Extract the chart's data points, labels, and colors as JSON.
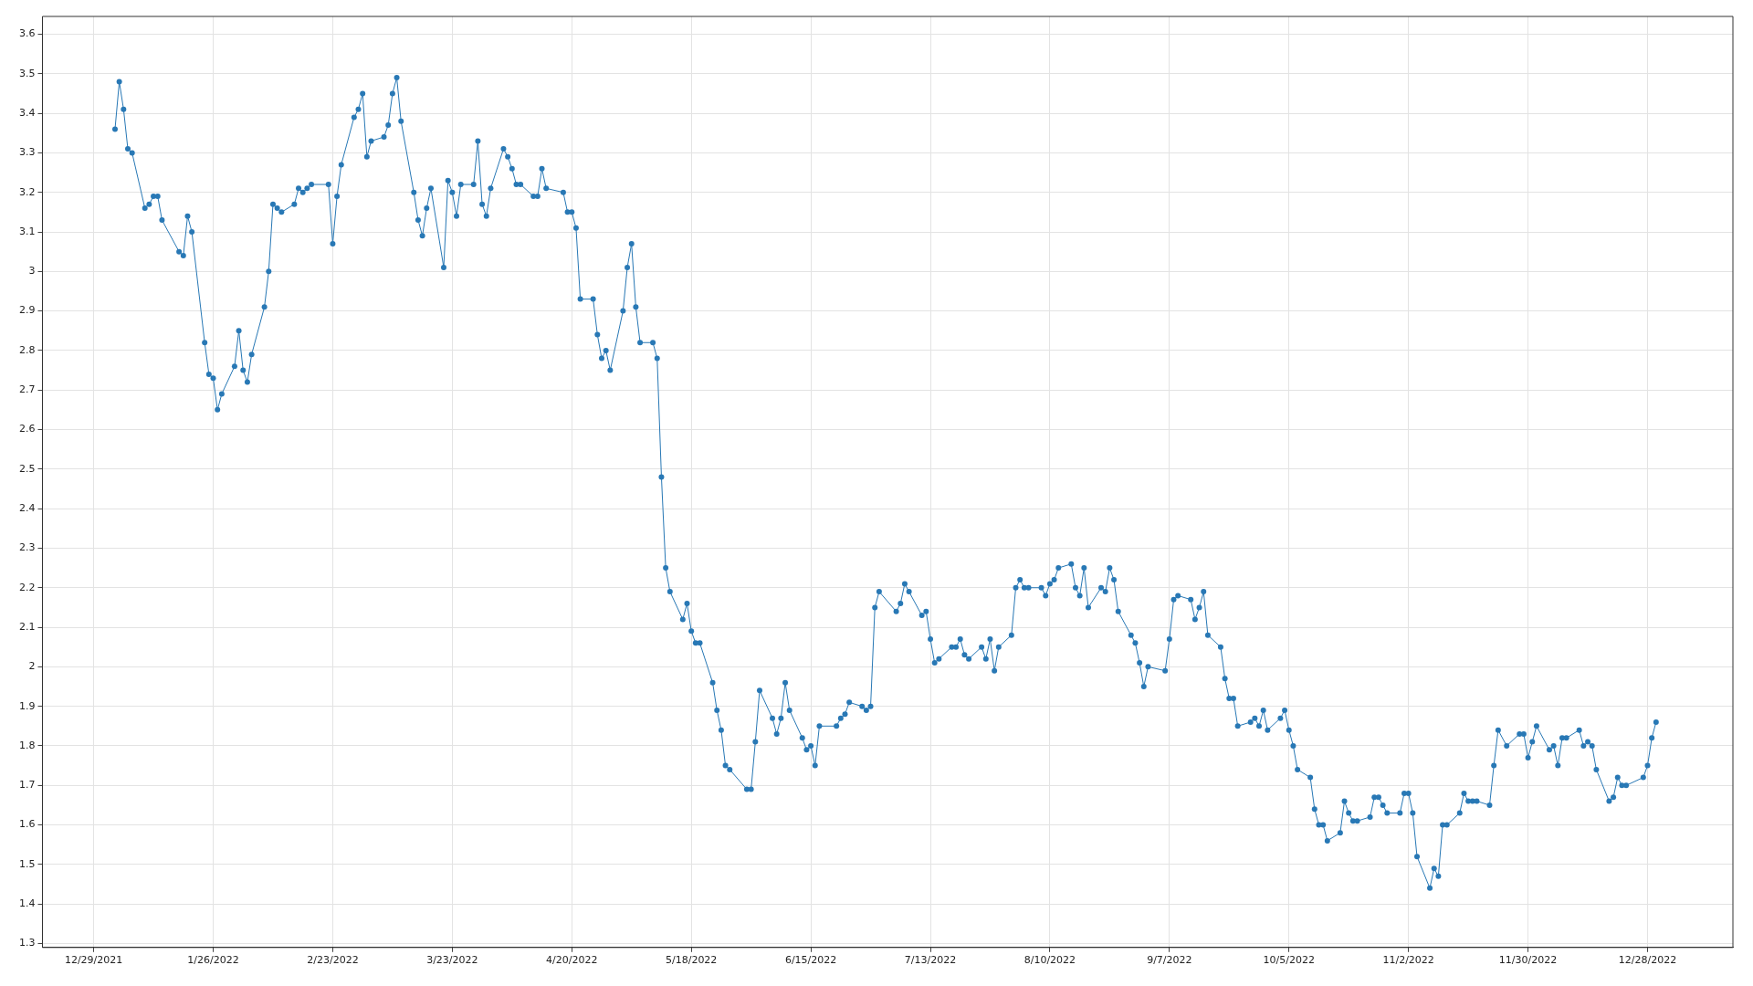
{
  "chart_data": {
    "type": "line",
    "marker": "circle",
    "line_style": "solid",
    "grid": true,
    "legend": false,
    "xlim": [
      "2021-12-17",
      "2023-01-17"
    ],
    "xticks": [
      {
        "value": "2021-12-29",
        "label": "12/29/2021"
      },
      {
        "value": "2022-01-26",
        "label": "1/26/2022"
      },
      {
        "value": "2022-02-23",
        "label": "2/23/2022"
      },
      {
        "value": "2022-03-23",
        "label": "3/23/2022"
      },
      {
        "value": "2022-04-20",
        "label": "4/20/2022"
      },
      {
        "value": "2022-05-18",
        "label": "5/18/2022"
      },
      {
        "value": "2022-06-15",
        "label": "6/15/2022"
      },
      {
        "value": "2022-07-13",
        "label": "7/13/2022"
      },
      {
        "value": "2022-08-10",
        "label": "8/10/2022"
      },
      {
        "value": "2022-09-07",
        "label": "9/7/2022"
      },
      {
        "value": "2022-10-05",
        "label": "10/5/2022"
      },
      {
        "value": "2022-11-02",
        "label": "11/2/2022"
      },
      {
        "value": "2022-11-30",
        "label": "11/30/2022"
      },
      {
        "value": "2022-12-28",
        "label": "12/28/2022"
      }
    ],
    "ylim": [
      1.29,
      3.645
    ],
    "yticks": [
      1.3,
      1.4,
      1.5,
      1.6,
      1.7,
      1.8,
      1.9,
      2,
      2.1,
      2.2,
      2.3,
      2.4,
      2.5,
      2.6,
      2.7,
      2.8,
      2.9,
      3,
      3.1,
      3.2,
      3.3,
      3.4,
      3.5,
      3.6
    ],
    "series": [
      {
        "color": "#2878b5",
        "x": [
          "2022-01-03",
          "2022-01-04",
          "2022-01-05",
          "2022-01-06",
          "2022-01-07",
          "2022-01-10",
          "2022-01-11",
          "2022-01-12",
          "2022-01-13",
          "2022-01-14",
          "2022-01-18",
          "2022-01-19",
          "2022-01-20",
          "2022-01-21",
          "2022-01-24",
          "2022-01-25",
          "2022-01-26",
          "2022-01-27",
          "2022-01-28",
          "2022-01-31",
          "2022-02-01",
          "2022-02-02",
          "2022-02-03",
          "2022-02-04",
          "2022-02-07",
          "2022-02-08",
          "2022-02-09",
          "2022-02-10",
          "2022-02-11",
          "2022-02-14",
          "2022-02-15",
          "2022-02-16",
          "2022-02-17",
          "2022-02-18",
          "2022-02-22",
          "2022-02-23",
          "2022-02-24",
          "2022-02-25",
          "2022-02-28",
          "2022-03-01",
          "2022-03-02",
          "2022-03-03",
          "2022-03-04",
          "2022-03-07",
          "2022-03-08",
          "2022-03-09",
          "2022-03-10",
          "2022-03-11",
          "2022-03-14",
          "2022-03-15",
          "2022-03-16",
          "2022-03-17",
          "2022-03-18",
          "2022-03-21",
          "2022-03-22",
          "2022-03-23",
          "2022-03-24",
          "2022-03-25",
          "2022-03-28",
          "2022-03-29",
          "2022-03-30",
          "2022-03-31",
          "2022-04-01",
          "2022-04-04",
          "2022-04-05",
          "2022-04-06",
          "2022-04-07",
          "2022-04-08",
          "2022-04-11",
          "2022-04-12",
          "2022-04-13",
          "2022-04-14",
          "2022-04-18",
          "2022-04-19",
          "2022-04-20",
          "2022-04-21",
          "2022-04-22",
          "2022-04-25",
          "2022-04-26",
          "2022-04-27",
          "2022-04-28",
          "2022-04-29",
          "2022-05-02",
          "2022-05-03",
          "2022-05-04",
          "2022-05-05",
          "2022-05-06",
          "2022-05-09",
          "2022-05-10",
          "2022-05-11",
          "2022-05-12",
          "2022-05-13",
          "2022-05-16",
          "2022-05-17",
          "2022-05-18",
          "2022-05-19",
          "2022-05-20",
          "2022-05-23",
          "2022-05-24",
          "2022-05-25",
          "2022-05-26",
          "2022-05-27",
          "2022-05-31",
          "2022-06-01",
          "2022-06-02",
          "2022-06-03",
          "2022-06-06",
          "2022-06-07",
          "2022-06-08",
          "2022-06-09",
          "2022-06-10",
          "2022-06-13",
          "2022-06-14",
          "2022-06-15",
          "2022-06-16",
          "2022-06-17",
          "2022-06-21",
          "2022-06-22",
          "2022-06-23",
          "2022-06-24",
          "2022-06-27",
          "2022-06-28",
          "2022-06-29",
          "2022-06-30",
          "2022-07-01",
          "2022-07-05",
          "2022-07-06",
          "2022-07-07",
          "2022-07-08",
          "2022-07-11",
          "2022-07-12",
          "2022-07-13",
          "2022-07-14",
          "2022-07-15",
          "2022-07-18",
          "2022-07-19",
          "2022-07-20",
          "2022-07-21",
          "2022-07-22",
          "2022-07-25",
          "2022-07-26",
          "2022-07-27",
          "2022-07-28",
          "2022-07-29",
          "2022-08-01",
          "2022-08-02",
          "2022-08-03",
          "2022-08-04",
          "2022-08-05",
          "2022-08-08",
          "2022-08-09",
          "2022-08-10",
          "2022-08-11",
          "2022-08-12",
          "2022-08-15",
          "2022-08-16",
          "2022-08-17",
          "2022-08-18",
          "2022-08-19",
          "2022-08-22",
          "2022-08-23",
          "2022-08-24",
          "2022-08-25",
          "2022-08-26",
          "2022-08-29",
          "2022-08-30",
          "2022-08-31",
          "2022-09-01",
          "2022-09-02",
          "2022-09-06",
          "2022-09-07",
          "2022-09-08",
          "2022-09-09",
          "2022-09-12",
          "2022-09-13",
          "2022-09-14",
          "2022-09-15",
          "2022-09-16",
          "2022-09-19",
          "2022-09-20",
          "2022-09-21",
          "2022-09-22",
          "2022-09-23",
          "2022-09-26",
          "2022-09-27",
          "2022-09-28",
          "2022-09-29",
          "2022-09-30",
          "2022-10-03",
          "2022-10-04",
          "2022-10-05",
          "2022-10-06",
          "2022-10-07",
          "2022-10-10",
          "2022-10-11",
          "2022-10-12",
          "2022-10-13",
          "2022-10-14",
          "2022-10-17",
          "2022-10-18",
          "2022-10-19",
          "2022-10-20",
          "2022-10-21",
          "2022-10-24",
          "2022-10-25",
          "2022-10-26",
          "2022-10-27",
          "2022-10-28",
          "2022-10-31",
          "2022-11-01",
          "2022-11-02",
          "2022-11-03",
          "2022-11-04",
          "2022-11-07",
          "2022-11-08",
          "2022-11-09",
          "2022-11-10",
          "2022-11-11",
          "2022-11-14",
          "2022-11-15",
          "2022-11-16",
          "2022-11-17",
          "2022-11-18",
          "2022-11-21",
          "2022-11-22",
          "2022-11-23",
          "2022-11-25",
          "2022-11-28",
          "2022-11-29",
          "2022-11-30",
          "2022-12-01",
          "2022-12-02",
          "2022-12-05",
          "2022-12-06",
          "2022-12-07",
          "2022-12-08",
          "2022-12-09",
          "2022-12-12",
          "2022-12-13",
          "2022-12-14",
          "2022-12-15",
          "2022-12-16",
          "2022-12-19",
          "2022-12-20",
          "2022-12-21",
          "2022-12-22",
          "2022-12-23",
          "2022-12-27",
          "2022-12-28",
          "2022-12-29",
          "2022-12-30"
        ],
        "values": [
          3.36,
          3.48,
          3.41,
          3.31,
          3.3,
          3.16,
          3.17,
          3.19,
          3.19,
          3.13,
          3.05,
          3.04,
          3.14,
          3.1,
          2.82,
          2.74,
          2.73,
          2.65,
          2.69,
          2.76,
          2.85,
          2.75,
          2.72,
          2.79,
          2.91,
          3,
          3.17,
          3.16,
          3.15,
          3.17,
          3.21,
          3.2,
          3.21,
          3.22,
          3.22,
          3.07,
          3.19,
          3.27,
          3.39,
          3.41,
          3.45,
          3.29,
          3.33,
          3.34,
          3.37,
          3.45,
          3.49,
          3.38,
          3.2,
          3.13,
          3.09,
          3.16,
          3.21,
          3.01,
          3.23,
          3.2,
          3.14,
          3.22,
          3.22,
          3.33,
          3.17,
          3.14,
          3.21,
          3.31,
          3.29,
          3.26,
          3.22,
          3.22,
          3.19,
          3.19,
          3.26,
          3.21,
          3.2,
          3.15,
          3.15,
          3.11,
          2.93,
          2.93,
          2.84,
          2.78,
          2.8,
          2.75,
          2.9,
          3.01,
          3.07,
          2.91,
          2.82,
          2.82,
          2.78,
          2.48,
          2.25,
          2.19,
          2.12,
          2.16,
          2.09,
          2.06,
          2.06,
          1.96,
          1.89,
          1.84,
          1.75,
          1.74,
          1.69,
          1.69,
          1.81,
          1.94,
          1.87,
          1.83,
          1.87,
          1.96,
          1.89,
          1.82,
          1.79,
          1.8,
          1.75,
          1.85,
          1.85,
          1.87,
          1.88,
          1.91,
          1.9,
          1.89,
          1.9,
          2.15,
          2.19,
          2.14,
          2.16,
          2.21,
          2.19,
          2.13,
          2.14,
          2.07,
          2.01,
          2.02,
          2.05,
          2.05,
          2.07,
          2.03,
          2.02,
          2.05,
          2.02,
          2.07,
          1.99,
          2.05,
          2.08,
          2.2,
          2.22,
          2.2,
          2.2,
          2.2,
          2.18,
          2.21,
          2.22,
          2.25,
          2.26,
          2.2,
          2.18,
          2.25,
          2.15,
          2.2,
          2.19,
          2.25,
          2.22,
          2.14,
          2.08,
          2.06,
          2.01,
          1.95,
          2,
          1.99,
          2.07,
          2.17,
          2.18,
          2.17,
          2.12,
          2.15,
          2.19,
          2.08,
          2.05,
          1.97,
          1.92,
          1.92,
          1.85,
          1.86,
          1.87,
          1.85,
          1.89,
          1.84,
          1.87,
          1.89,
          1.84,
          1.8,
          1.74,
          1.72,
          1.64,
          1.6,
          1.6,
          1.56,
          1.58,
          1.66,
          1.63,
          1.61,
          1.61,
          1.62,
          1.67,
          1.67,
          1.65,
          1.63,
          1.63,
          1.68,
          1.68,
          1.63,
          1.52,
          1.44,
          1.49,
          1.47,
          1.6,
          1.6,
          1.63,
          1.68,
          1.66,
          1.66,
          1.66,
          1.65,
          1.75,
          1.84,
          1.8,
          1.83,
          1.83,
          1.77,
          1.81,
          1.85,
          1.79,
          1.8,
          1.75,
          1.82,
          1.82,
          1.84,
          1.8,
          1.81,
          1.8,
          1.74,
          1.66,
          1.67,
          1.72,
          1.7,
          1.7,
          1.72,
          1.75,
          1.82,
          1.86
        ]
      }
    ]
  }
}
